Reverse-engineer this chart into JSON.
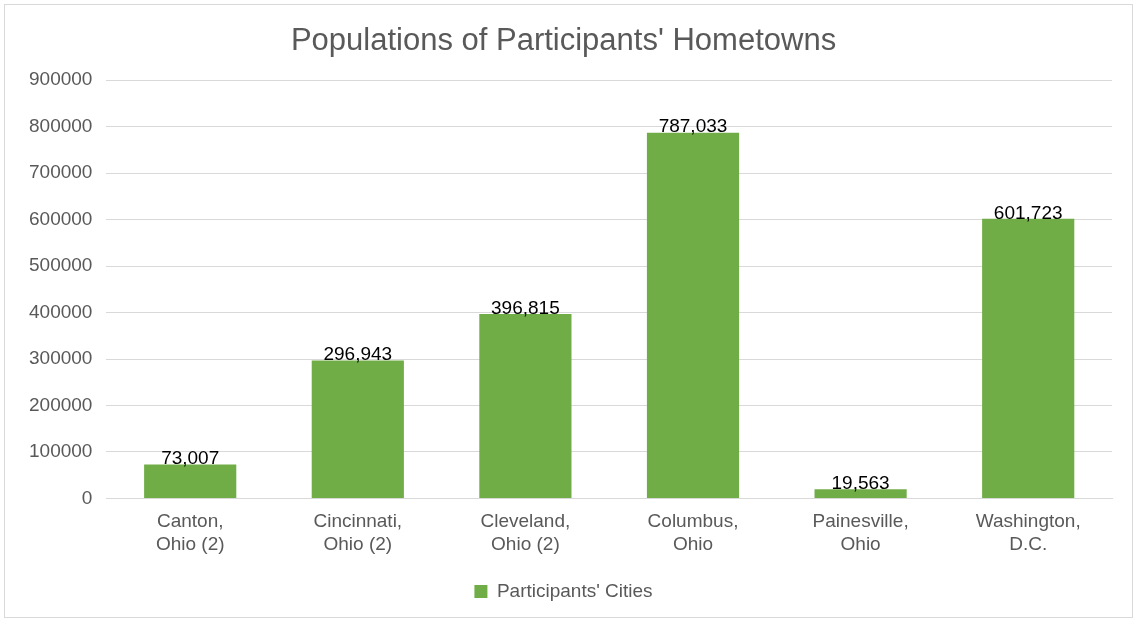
{
  "chart_data": {
    "type": "bar",
    "title": "Populations of Participants' Hometowns",
    "categories": [
      "Canton, Ohio (2)",
      "Cincinnati, Ohio (2)",
      "Cleveland, Ohio (2)",
      "Columbus, Ohio",
      "Painesville, Ohio",
      "Washington, D.C."
    ],
    "series": [
      {
        "name": "Participants' Cities",
        "color": "#70ad47",
        "values": [
          73007,
          296943,
          396815,
          787033,
          19563,
          601723
        ],
        "value_labels": [
          "73,007",
          "296,943",
          "396,815",
          "787,033",
          "19,563",
          "601,723"
        ]
      }
    ],
    "ylim": [
      0,
      900000
    ],
    "yticks": [
      0,
      100000,
      200000,
      300000,
      400000,
      500000,
      600000,
      700000,
      800000,
      900000
    ],
    "grid": "y",
    "legend": "bottom"
  }
}
